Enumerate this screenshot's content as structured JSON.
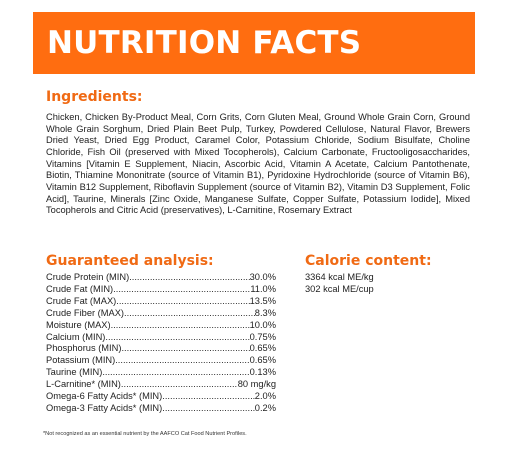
{
  "header": {
    "title": "NUTRITION FACTS"
  },
  "ingredients": {
    "heading": "Ingredients:",
    "text": "Chicken, Chicken By-Product Meal, Corn Grits, Corn Gluten Meal, Ground Whole Grain Corn, Ground Whole Grain Sorghum, Dried Plain Beet Pulp, Turkey, Powdered Cellulose, Natural Flavor, Brewers Dried Yeast, Dried Egg Product, Caramel Color, Potassium Chloride, Sodium Bisulfate, Choline Chloride, Fish Oil (preserved with Mixed Tocopherols), Calcium Carbonate, Fructooligosaccharides, Vitamins [Vitamin E Supplement, Niacin, Ascorbic Acid, Vitamin A Acetate, Calcium Pantothenate, Biotin, Thiamine Mononitrate (source of Vitamin B1), Pyridoxine Hydrochloride (source of Vitamin B6), Vitamin B12 Supplement, Riboflavin Supplement (source of Vitamin B2), Vitamin D3 Supplement, Folic Acid], Taurine, Minerals [Zinc Oxide, Manganese Sulfate, Copper Sulfate, Potassium Iodide], Mixed Tocopherols and Citric Acid (preservatives), L-Carnitine, Rosemary Extract"
  },
  "guaranteed_analysis": {
    "heading": "Guaranteed analysis:",
    "rows": [
      {
        "label": "Crude Protein (MIN)",
        "value": "30.0%"
      },
      {
        "label": "Crude Fat (MIN)",
        "value": "11.0%"
      },
      {
        "label": "Crude Fat (MAX)",
        "value": "13.5%"
      },
      {
        "label": "Crude Fiber (MAX)",
        "value": "8.3%"
      },
      {
        "label": "Moisture (MAX)",
        "value": "10.0%"
      },
      {
        "label": "Calcium (MIN)",
        "value": "0.75%"
      },
      {
        "label": "Phosphorus (MIN)",
        "value": "0.65%"
      },
      {
        "label": "Potassium (MIN)",
        "value": "0.65%"
      },
      {
        "label": "Taurine (MIN)",
        "value": "0.13%"
      },
      {
        "label": "L-Carnitine* (MIN)",
        "value": "80 mg/kg"
      },
      {
        "label": "Omega-6 Fatty Acids* (MIN)",
        "value": "2.0%"
      },
      {
        "label": "Omega-3 Fatty Acids* (MIN)",
        "value": "0.2%"
      }
    ]
  },
  "calorie_content": {
    "heading": "Calorie content:",
    "lines": [
      "3364 kcal ME/kg",
      "302 kcal ME/cup"
    ]
  },
  "footnote": "*Not recognized as an essential nutrient by the AAFCO Cat Food Nutrient Profiles.",
  "colors": {
    "banner": "#ff6d10",
    "heading": "#f06a14",
    "text": "#222222"
  }
}
